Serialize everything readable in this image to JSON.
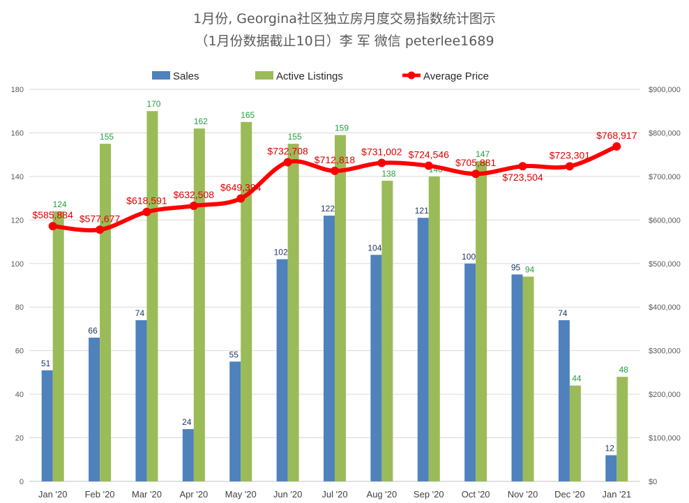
{
  "chart_data": {
    "type": "bar",
    "title_line1": "1月份, Georgina社区独立房月度交易指数统计图示",
    "title_line2": "（1月份数据截止10日）李 军  微信  peterlee1689",
    "categories": [
      "Jan '20",
      "Feb '20",
      "Mar '20",
      "Apr '20",
      "May '20",
      "Jun '20",
      "Jul '20",
      "Aug '20",
      "Sep '20",
      "Oct '20",
      "Nov '20",
      "Dec '20",
      "Jan '21"
    ],
    "series": [
      {
        "name": "Sales",
        "type": "bar",
        "axis": "left",
        "color": "#4f81bd",
        "values": [
          51,
          66,
          74,
          24,
          55,
          102,
          122,
          104,
          121,
          100,
          95,
          74,
          12
        ]
      },
      {
        "name": "Active Listings",
        "type": "bar",
        "axis": "left",
        "color": "#9bbb59",
        "values": [
          124,
          155,
          170,
          162,
          165,
          155,
          159,
          138,
          140,
          147,
          94,
          44,
          48
        ]
      },
      {
        "name": "Average Price",
        "type": "line",
        "axis": "right",
        "color": "#ff0000",
        "values": [
          585884,
          577677,
          618591,
          632508,
          649394,
          732708,
          712818,
          731002,
          724546,
          705881,
          723504,
          723301,
          768917
        ],
        "labels": [
          "$585,884",
          "$577,677",
          "$618,591",
          "$632,508",
          "$649,394",
          "$732,708",
          "$712,818",
          "$731,002",
          "$724,546",
          "$705,881",
          "$723,504",
          "$723,301",
          "$768,917"
        ]
      }
    ],
    "y_left": {
      "min": 0,
      "max": 180,
      "step": 20,
      "tick_labels": [
        "0",
        "20",
        "40",
        "60",
        "80",
        "100",
        "120",
        "140",
        "160",
        "180"
      ]
    },
    "y_right": {
      "min": 0,
      "max": 900000,
      "step": 100000,
      "tick_labels": [
        "$0",
        "$100,000",
        "$200,000",
        "$300,000",
        "$400,000",
        "$500,000",
        "$600,000",
        "$700,000",
        "$800,000",
        "$900,000"
      ]
    },
    "legend_position": "top-center",
    "grid": true
  }
}
